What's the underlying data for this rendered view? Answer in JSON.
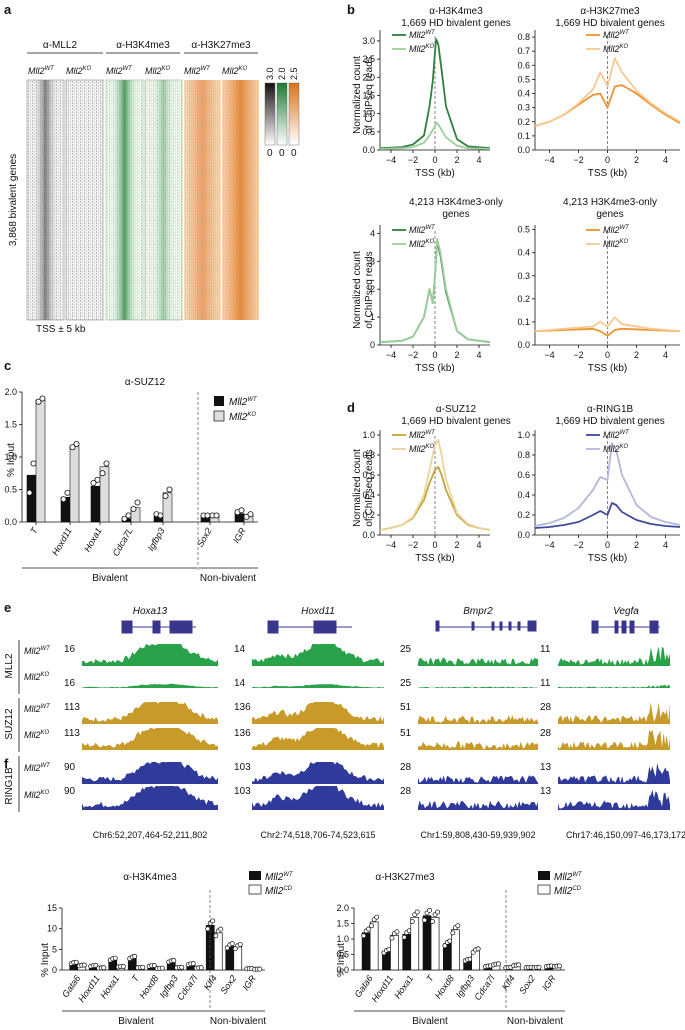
{
  "panels": {
    "a": "a",
    "b": "b",
    "c": "c",
    "d": "d",
    "e": "e",
    "f": "f"
  },
  "colors": {
    "green": "#2f7f3f",
    "lightgreen": "#9ccf9c",
    "orange": "#f0922e",
    "lightorange": "#f8c98f",
    "gold": "#c9a33a",
    "lightgold": "#ead49a",
    "navy": "#3f4a9e",
    "lightnavy": "#b3b8dc",
    "trackgreen": "#2aa24a",
    "trackgold": "#c89a2a",
    "tracknavy": "#2f3a9a",
    "gene": "#38358c"
  },
  "a": {
    "groups": [
      "α-MLL2",
      "α-H3K4me3",
      "α-H3K27me3"
    ],
    "cols": [
      "Mll2",
      "Mll2",
      "Mll2",
      "Mll2",
      "Mll2",
      "Mll2"
    ],
    "sups": [
      "WT",
      "KO",
      "WT",
      "KO",
      "WT",
      "KO"
    ],
    "ylabel": "3,868 bivalent genes",
    "xlabel": "TSS ± 5 kb",
    "scale_max": [
      "3.0",
      "2.0",
      "2.5"
    ],
    "scale_min": [
      "0",
      "0",
      "0"
    ]
  },
  "b": {
    "yaxis": "Normalized count of ChIPseq reads",
    "yaxis1": "Normalized count",
    "yaxis2": "of ChIPseq reads",
    "xlabel": "TSS (kb)",
    "plots": [
      {
        "title1": "α-H3K4me3",
        "title2": "1,669 HD bivalent genes"
      },
      {
        "title1": "α-H3K27me3",
        "title2": "1,669 HD bivalent genes"
      },
      {
        "title1": "4,213 H3K4me3-only",
        "title2": "genes"
      },
      {
        "title1": "4,213 H3K4me3-only",
        "title2": "genes"
      }
    ],
    "legend": [
      "Mll2",
      "Mll2"
    ],
    "legend_sup": [
      "WT",
      "KO"
    ]
  },
  "c": {
    "title": "α-SUZ12",
    "ylabel": "% Input",
    "legend": [
      "Mll2",
      "Mll2"
    ],
    "legend_sup": [
      "WT",
      "KO"
    ],
    "group_bivalent": "Bivalent",
    "group_non": "Non-bivalent"
  },
  "d": {
    "xlabel": "TSS (kb)",
    "yaxis1": "Normalized count",
    "yaxis2": "of ChIPseq reads",
    "plots": [
      {
        "title1": "α-SUZ12",
        "title2": "1,669 HD bivalent genes"
      },
      {
        "title1": "α-RING1B",
        "title2": "1,669 HD bivalent genes"
      }
    ]
  },
  "e": {
    "genes": [
      "Hoxa13",
      "Hoxd11",
      "Bmpr2",
      "Vegfa"
    ],
    "coords": [
      "Chr6:52,207,464-52,211,802",
      "Chr2:74,518,706-74,523,615",
      "Chr1:59,808,430-59,939,902",
      "Chr17:46,150,097-46,173,172"
    ],
    "antibodies": [
      "MLL2",
      "SUZ12",
      "RING1B"
    ],
    "row_sup": [
      "WT",
      "KO",
      "WT",
      "KO",
      "WT",
      "KO"
    ],
    "scales": [
      [
        "16",
        "16",
        "113",
        "113",
        "90",
        "90"
      ],
      [
        "14",
        "14",
        "136",
        "136",
        "103",
        "103"
      ],
      [
        "25",
        "25",
        "51",
        "51",
        "28",
        "28"
      ],
      [
        "11",
        "11",
        "28",
        "28",
        "13",
        "13"
      ]
    ]
  },
  "f": {
    "ylabel": "% Input",
    "legend": [
      "Mll2",
      "Mll2"
    ],
    "legend_sup": [
      "WT",
      "CD"
    ],
    "group_bivalent": "Bivalent",
    "group_non": "Non-bivalent",
    "plots": [
      {
        "title": "α-H3K4me3"
      },
      {
        "title": "α-H3K27me3"
      }
    ]
  },
  "chart_data": [
    {
      "type": "line",
      "panel": "b",
      "title": "α-H3K4me3 1,669 HD bivalent genes",
      "xlabel": "TSS (kb)",
      "ylabel": "Normalized count of ChIPseq reads",
      "xlim": [
        -5,
        5
      ],
      "ylim": [
        0,
        3.3
      ],
      "xticks": [
        -4,
        -2,
        0,
        2,
        4
      ],
      "yticks": [
        0,
        0.5,
        1.0,
        1.5,
        2.0,
        2.5,
        3.0
      ],
      "series": [
        {
          "name": "Mll2 WT",
          "x": [
            -5,
            -3,
            -2,
            -1,
            -0.5,
            -0.2,
            0,
            0.1,
            0.3,
            0.6,
            1,
            2,
            3,
            5
          ],
          "values": [
            0.05,
            0.08,
            0.15,
            0.4,
            1.2,
            1.9,
            2.7,
            3.05,
            2.9,
            2.2,
            1.2,
            0.3,
            0.1,
            0.05
          ]
        },
        {
          "name": "Mll2 KO",
          "x": [
            -5,
            -3,
            -2,
            -1,
            -0.5,
            -0.2,
            0,
            0.1,
            0.3,
            0.6,
            1,
            2,
            3,
            5
          ],
          "values": [
            0.03,
            0.05,
            0.08,
            0.2,
            0.4,
            0.55,
            0.65,
            0.75,
            0.7,
            0.55,
            0.35,
            0.12,
            0.05,
            0.03
          ]
        }
      ]
    },
    {
      "type": "line",
      "panel": "b",
      "title": "α-H3K27me3 1,669 HD bivalent genes",
      "xlabel": "TSS (kb)",
      "xlim": [
        -5,
        5
      ],
      "ylim": [
        0,
        0.85
      ],
      "xticks": [
        -4,
        -2,
        0,
        2,
        4
      ],
      "yticks": [
        0,
        0.1,
        0.2,
        0.3,
        0.4,
        0.5,
        0.6,
        0.7,
        0.8
      ],
      "series": [
        {
          "name": "Mll2 WT",
          "x": [
            -5,
            -4,
            -3,
            -2,
            -1,
            -0.5,
            0,
            0.5,
            1,
            2,
            3,
            4,
            5
          ],
          "values": [
            0.17,
            0.2,
            0.25,
            0.32,
            0.39,
            0.4,
            0.3,
            0.45,
            0.46,
            0.4,
            0.32,
            0.25,
            0.19
          ]
        },
        {
          "name": "Mll2 KO",
          "x": [
            -5,
            -4,
            -3,
            -2,
            -1,
            -0.5,
            0,
            0.5,
            1,
            2,
            3,
            4,
            5
          ],
          "values": [
            0.17,
            0.2,
            0.25,
            0.33,
            0.43,
            0.55,
            0.45,
            0.65,
            0.55,
            0.42,
            0.33,
            0.26,
            0.2
          ]
        }
      ]
    },
    {
      "type": "line",
      "panel": "b",
      "title": "4,213 H3K4me3-only genes",
      "xlabel": "TSS (kb)",
      "ylabel": "Normalized count of ChIPseq reads",
      "xlim": [
        -5,
        5
      ],
      "ylim": [
        0,
        4.3
      ],
      "xticks": [
        -4,
        -2,
        0,
        2,
        4
      ],
      "yticks": [
        0,
        1,
        2,
        3,
        4
      ],
      "series": [
        {
          "name": "Mll2 WT",
          "x": [
            -5,
            -3,
            -2,
            -1,
            -0.5,
            -0.2,
            0,
            0.2,
            0.5,
            1,
            2,
            3,
            5
          ],
          "values": [
            0.1,
            0.15,
            0.3,
            1.0,
            2.0,
            1.5,
            2.5,
            3.7,
            3.2,
            1.9,
            0.5,
            0.2,
            0.1
          ]
        },
        {
          "name": "Mll2 KO",
          "x": [
            -5,
            -3,
            -2,
            -1,
            -0.5,
            -0.2,
            0,
            0.2,
            0.5,
            1,
            2,
            3,
            5
          ],
          "values": [
            0.1,
            0.15,
            0.3,
            1.0,
            2.0,
            1.5,
            2.5,
            3.8,
            3.3,
            2.0,
            0.5,
            0.2,
            0.1
          ]
        }
      ]
    },
    {
      "type": "line",
      "panel": "b",
      "title": "4,213 H3K4me3-only genes",
      "xlabel": "TSS (kb)",
      "xlim": [
        -5,
        5
      ],
      "ylim": [
        0,
        0.52
      ],
      "xticks": [
        -4,
        -2,
        0,
        2,
        4
      ],
      "yticks": [
        0,
        0.1,
        0.2,
        0.3,
        0.4,
        0.5
      ],
      "series": [
        {
          "name": "Mll2 WT",
          "x": [
            -5,
            -3,
            -1,
            -0.5,
            0,
            0.5,
            1,
            3,
            5
          ],
          "values": [
            0.06,
            0.065,
            0.07,
            0.06,
            0.04,
            0.065,
            0.07,
            0.065,
            0.06
          ]
        },
        {
          "name": "Mll2 KO",
          "x": [
            -5,
            -3,
            -1,
            -0.5,
            0,
            0.5,
            1,
            3,
            5
          ],
          "values": [
            0.06,
            0.07,
            0.08,
            0.1,
            0.08,
            0.12,
            0.09,
            0.07,
            0.06
          ]
        }
      ]
    },
    {
      "type": "bar",
      "panel": "c",
      "title": "α-SUZ12",
      "ylabel": "% Input",
      "ylim": [
        0,
        2.0
      ],
      "yticks": [
        0,
        0.5,
        1.0,
        1.5,
        2.0
      ],
      "categories": [
        "T",
        "Hoxd11",
        "Hoxa1",
        "Cdca7L",
        "Igfbp3",
        "Sox2",
        "IGR"
      ],
      "series": [
        {
          "name": "Mll2 WT",
          "values": [
            0.72,
            0.38,
            0.55,
            0.05,
            0.09,
            0.1,
            0.13
          ],
          "points": [
            [
              0.45,
              0.9
            ],
            [
              0.35,
              0.45
            ],
            [
              0.6,
              0.65
            ],
            [
              0.05,
              0.1
            ],
            [
              0.12,
              0.1
            ],
            [
              0.1,
              0.1
            ],
            [
              0.15,
              0.18
            ]
          ]
        },
        {
          "name": "Mll2 KO",
          "values": [
            1.88,
            1.17,
            0.85,
            0.22,
            0.45,
            0.1,
            0.1
          ],
          "points": [
            [
              1.85,
              1.9
            ],
            [
              1.15,
              1.2
            ],
            [
              0.75,
              0.9
            ],
            [
              0.2,
              0.3
            ],
            [
              0.4,
              0.5
            ],
            [
              0.1,
              0.1
            ],
            [
              0.08,
              0.12
            ]
          ]
        }
      ]
    },
    {
      "type": "line",
      "panel": "d",
      "title": "α-SUZ12 1,669 HD bivalent genes",
      "xlabel": "TSS (kb)",
      "ylabel": "Normalized count of ChIPseq reads",
      "xlim": [
        -5,
        5
      ],
      "ylim": [
        0,
        1.05
      ],
      "xticks": [
        -4,
        -2,
        0,
        2,
        4
      ],
      "yticks": [
        0,
        0.2,
        0.4,
        0.6,
        0.8,
        1.0
      ],
      "series": [
        {
          "name": "Mll2 WT",
          "x": [
            -5,
            -4,
            -3,
            -2,
            -1,
            -0.5,
            0,
            0.3,
            0.6,
            1,
            2,
            3,
            4,
            5
          ],
          "values": [
            0.05,
            0.07,
            0.1,
            0.17,
            0.35,
            0.52,
            0.65,
            0.68,
            0.6,
            0.45,
            0.2,
            0.1,
            0.07,
            0.05
          ]
        },
        {
          "name": "Mll2 KO",
          "x": [
            -5,
            -4,
            -3,
            -2,
            -1,
            -0.5,
            0,
            0.3,
            0.6,
            1,
            2,
            3,
            4,
            5
          ],
          "values": [
            0.05,
            0.07,
            0.1,
            0.18,
            0.4,
            0.65,
            0.9,
            0.95,
            0.8,
            0.55,
            0.22,
            0.11,
            0.07,
            0.05
          ]
        }
      ]
    },
    {
      "type": "line",
      "panel": "d",
      "title": "α-RING1B 1,669 HD bivalent genes",
      "xlabel": "TSS (kb)",
      "xlim": [
        -5,
        5
      ],
      "ylim": [
        0,
        1.05
      ],
      "xticks": [
        -4,
        -2,
        0,
        2,
        4
      ],
      "yticks": [
        0,
        0.2,
        0.4,
        0.6,
        0.8,
        1.0
      ],
      "series": [
        {
          "name": "Mll2 WT",
          "x": [
            -5,
            -4,
            -3,
            -2,
            -1,
            -0.5,
            0,
            0.3,
            0.6,
            1,
            2,
            3,
            4,
            5
          ],
          "values": [
            0.07,
            0.08,
            0.1,
            0.13,
            0.2,
            0.24,
            0.2,
            0.32,
            0.3,
            0.23,
            0.15,
            0.11,
            0.09,
            0.08
          ]
        },
        {
          "name": "Mll2 KO",
          "x": [
            -5,
            -4,
            -3,
            -2,
            -1,
            -0.5,
            0,
            0.3,
            0.6,
            1,
            2,
            3,
            4,
            5
          ],
          "values": [
            0.09,
            0.12,
            0.17,
            0.27,
            0.45,
            0.58,
            0.55,
            0.92,
            0.85,
            0.6,
            0.3,
            0.18,
            0.13,
            0.1
          ]
        }
      ]
    },
    {
      "type": "bar",
      "panel": "f",
      "title": "α-H3K4me3",
      "ylabel": "% Input",
      "ylim": [
        0,
        15
      ],
      "yticks": [
        0,
        5,
        10,
        15
      ],
      "categories": [
        "Gata6",
        "Hoxd11",
        "Hoxa1",
        "T",
        "Hoxd8",
        "Igfbp3",
        "Cdca7l",
        "Klf4",
        "Sox2",
        "IGR"
      ],
      "series": [
        {
          "name": "Mll2 WT",
          "values": [
            1.7,
            1.0,
            2.6,
            3.0,
            1.0,
            2.1,
            1.4,
            10.8,
            5.8,
            0.3
          ]
        },
        {
          "name": "Mll2 CD",
          "values": [
            1.1,
            0.5,
            0.8,
            0.6,
            0.4,
            0.6,
            0.5,
            9.0,
            5.6,
            0.2
          ]
        }
      ]
    },
    {
      "type": "bar",
      "panel": "f",
      "title": "α-H3K27me3",
      "ylabel": "% Input",
      "ylim": [
        0,
        2.0
      ],
      "yticks": [
        0,
        0.5,
        1.0,
        1.5,
        2.0
      ],
      "categories": [
        "Gata6",
        "Hoxd11",
        "Hoxa1",
        "T",
        "Hoxd8",
        "Igfbp3",
        "Cdca7l",
        "Klf4",
        "Sox2",
        "IGR"
      ],
      "series": [
        {
          "name": "Mll2 WT",
          "values": [
            1.2,
            0.6,
            1.15,
            1.75,
            0.85,
            0.32,
            0.12,
            0.08,
            0.08,
            0.12
          ]
        },
        {
          "name": "Mll2 CD",
          "values": [
            1.55,
            1.12,
            1.7,
            1.7,
            1.3,
            0.62,
            0.18,
            0.15,
            0.08,
            0.12
          ]
        }
      ]
    }
  ]
}
